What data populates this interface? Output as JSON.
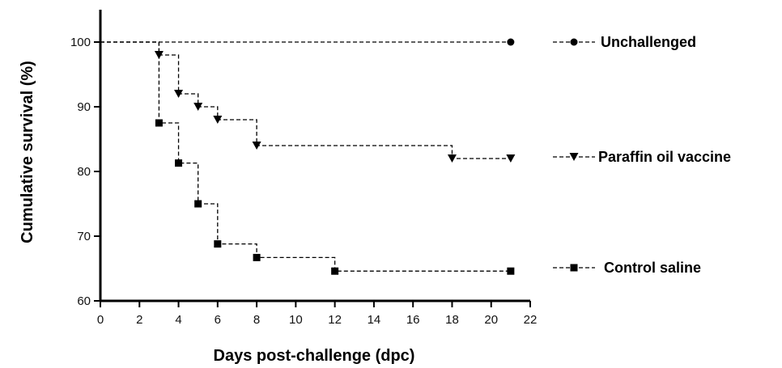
{
  "chart_data": {
    "type": "line",
    "step": true,
    "line_style": "dashed",
    "xlabel": "Days post-challenge (dpc)",
    "ylabel": "Cumulative survival (%)",
    "xlim": [
      0,
      22
    ],
    "ylim": [
      60,
      105
    ],
    "x_ticks": [
      0,
      2,
      4,
      6,
      8,
      10,
      12,
      14,
      16,
      18,
      20,
      22
    ],
    "y_ticks": [
      60,
      70,
      80,
      90,
      100
    ],
    "grid": false,
    "legend_position": "right",
    "series": [
      {
        "name": "Unchallenged",
        "marker": "circle",
        "x": [
          0,
          21
        ],
        "y": [
          100,
          100
        ],
        "marker_x": [
          21
        ],
        "marker_y": [
          100
        ]
      },
      {
        "name": "Paraffin oil vaccine",
        "marker": "triangle-down",
        "x": [
          0,
          3,
          4,
          5,
          6,
          8,
          18,
          21
        ],
        "y": [
          100,
          98,
          92,
          90,
          88,
          84,
          82,
          82
        ],
        "marker_x": [
          3,
          4,
          5,
          6,
          8,
          18,
          21
        ],
        "marker_y": [
          98,
          92,
          90,
          88,
          84,
          82,
          82
        ]
      },
      {
        "name": "Control saline",
        "marker": "square",
        "x": [
          0,
          3,
          4,
          5,
          6,
          8,
          12,
          21
        ],
        "y": [
          100,
          87.5,
          81.3,
          75,
          68.8,
          66.7,
          64.6,
          64.6
        ],
        "marker_x": [
          3,
          4,
          5,
          6,
          8,
          12,
          21
        ],
        "marker_y": [
          87.5,
          81.3,
          75,
          68.8,
          66.7,
          64.6,
          64.6
        ]
      }
    ]
  }
}
